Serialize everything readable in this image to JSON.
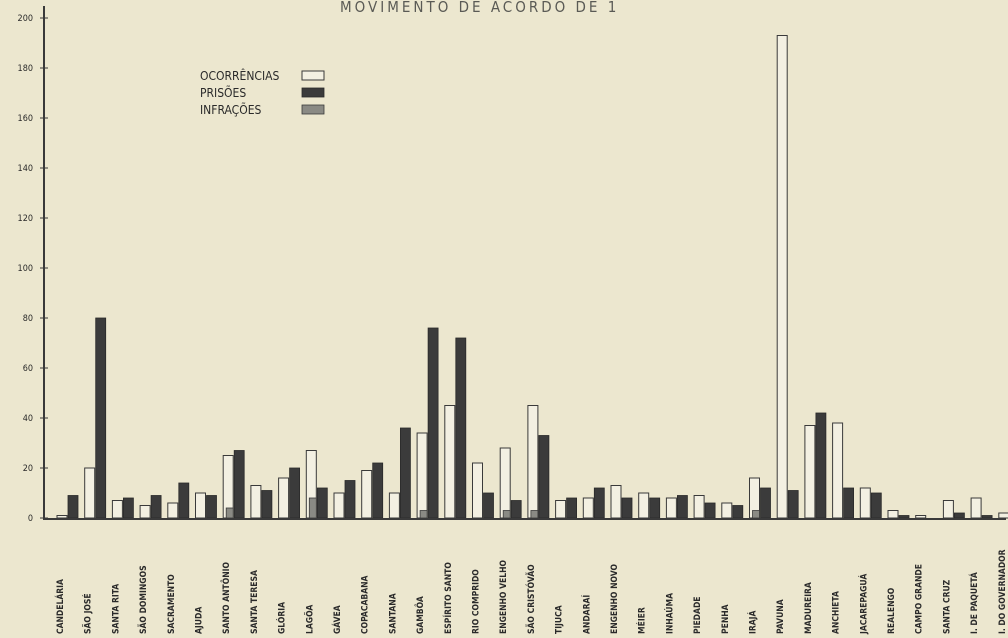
{
  "chart_data": {
    "type": "bar",
    "title": "MOVIMENTO DE ACORDO DE 1",
    "ylim": [
      0,
      200
    ],
    "yticks": [
      0,
      20,
      40,
      60,
      80,
      100,
      120,
      140,
      160,
      180,
      200
    ],
    "legend": {
      "position": "top-left",
      "entries": [
        {
          "label": "OCORRÊNCIAS",
          "style": "hollow"
        },
        {
          "label": "PRISÕES",
          "style": "dark"
        },
        {
          "label": "INFRAÇÕES",
          "style": "gray"
        }
      ]
    },
    "categories": [
      "CANDELÁRIA",
      "SÃO JOSÉ",
      "SANTA RITA",
      "SÃO DOMINGOS",
      "SACRAMENTO",
      "AJUDA",
      "SANTO ANTÔNIO",
      "SANTA TERESA",
      "GLÓRIA",
      "LAGÕA",
      "GÁVEA",
      "COPACABANA",
      "SANTANA",
      "GAMBÔA",
      "ESPÍRITO SANTO",
      "RIO COMPRIDO",
      "ENGENHO VELHO",
      "SÃO CRISTÓVÃO",
      "TIJUCA",
      "ANDARAÍ",
      "ENGENHO NOVO",
      "MÉIER",
      "INHAÚMA",
      "PIEDADE",
      "PENHA",
      "IRAJÁ",
      "PAVUNA",
      "MADUREIRA",
      "ANCHIETA",
      "JACAREPAGUÁ",
      "REALENGO",
      "CAMPO GRANDE",
      "SANTA CRUZ",
      "I. DE PAQUETÁ",
      "I. DO GOVERNADOR"
    ],
    "series": [
      {
        "name": "OCORRÊNCIAS",
        "values": [
          1,
          20,
          7,
          5,
          6,
          10,
          25,
          13,
          16,
          27,
          10,
          19,
          10,
          34,
          45,
          22,
          28,
          45,
          7,
          8,
          13,
          10,
          8,
          9,
          6,
          16,
          193,
          37,
          38,
          12,
          3,
          1,
          7,
          8,
          2
        ]
      },
      {
        "name": "PRISÕES",
        "values": [
          9,
          80,
          8,
          9,
          14,
          9,
          27,
          11,
          20,
          12,
          15,
          22,
          36,
          76,
          72,
          10,
          7,
          33,
          8,
          12,
          8,
          8,
          9,
          6,
          5,
          12,
          11,
          42,
          12,
          10,
          1,
          0,
          2,
          1,
          1
        ]
      },
      {
        "name": "INFRAÇÕES",
        "values": [
          0,
          0,
          0,
          0,
          0,
          0,
          4,
          0,
          0,
          8,
          0,
          0,
          0,
          3,
          0,
          0,
          3,
          3,
          0,
          0,
          0,
          0,
          0,
          0,
          0,
          3,
          0,
          0,
          0,
          0,
          0,
          0,
          0,
          0,
          0
        ]
      }
    ]
  }
}
